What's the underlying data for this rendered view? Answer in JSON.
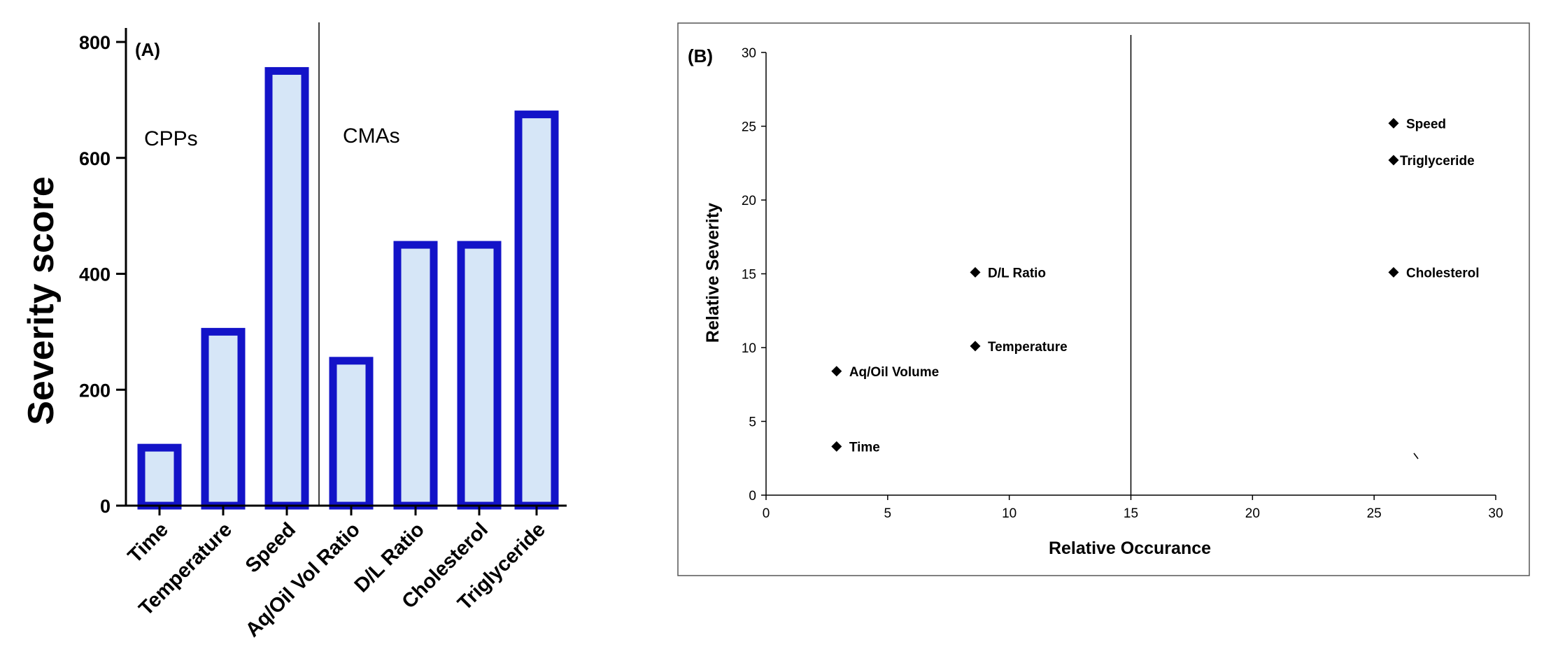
{
  "chart_data": [
    {
      "type": "bar",
      "panel_label": "(A)",
      "ylabel": "Severity score",
      "ylim": [
        0,
        800
      ],
      "yticks": [
        0,
        200,
        400,
        600,
        800
      ],
      "categories": [
        "Time",
        "Temperature",
        "Speed",
        "Aq/Oil Vol Ratio",
        "D/L Ratio",
        "Cholesterol",
        "Triglyceride"
      ],
      "values": [
        100,
        300,
        750,
        250,
        450,
        450,
        675
      ],
      "groups": [
        {
          "label": "CPPs",
          "categories": [
            "Time",
            "Temperature",
            "Speed"
          ]
        },
        {
          "label": "CMAs",
          "categories": [
            "Aq/Oil Vol Ratio",
            "D/L Ratio",
            "Cholesterol",
            "Triglyceride"
          ]
        }
      ],
      "colors": {
        "bar_fill": "#d6e6f7",
        "bar_edge": "#1313c8"
      }
    },
    {
      "type": "scatter",
      "panel_label": "(B)",
      "xlabel": "Relative Occurance",
      "ylabel": "Relative Severity",
      "xlim": [
        0,
        30
      ],
      "ylim": [
        0,
        30
      ],
      "xticks": [
        0,
        5,
        10,
        15,
        20,
        25,
        30
      ],
      "yticks": [
        0,
        5,
        10,
        15,
        20,
        25,
        30
      ],
      "divider_x": 15,
      "points": [
        {
          "label": "Time",
          "x": 2.9,
          "y": 3.3
        },
        {
          "label": "Aq/Oil Volume",
          "x": 2.9,
          "y": 8.4
        },
        {
          "label": "Temperature",
          "x": 8.6,
          "y": 10.1
        },
        {
          "label": "D/L Ratio",
          "x": 8.6,
          "y": 15.1
        },
        {
          "label": "Speed",
          "x": 25.8,
          "y": 25.2
        },
        {
          "label": "Triglyceride",
          "x": 25.8,
          "y": 22.7
        },
        {
          "label": "Cholesterol",
          "x": 25.8,
          "y": 15.1
        }
      ]
    }
  ]
}
